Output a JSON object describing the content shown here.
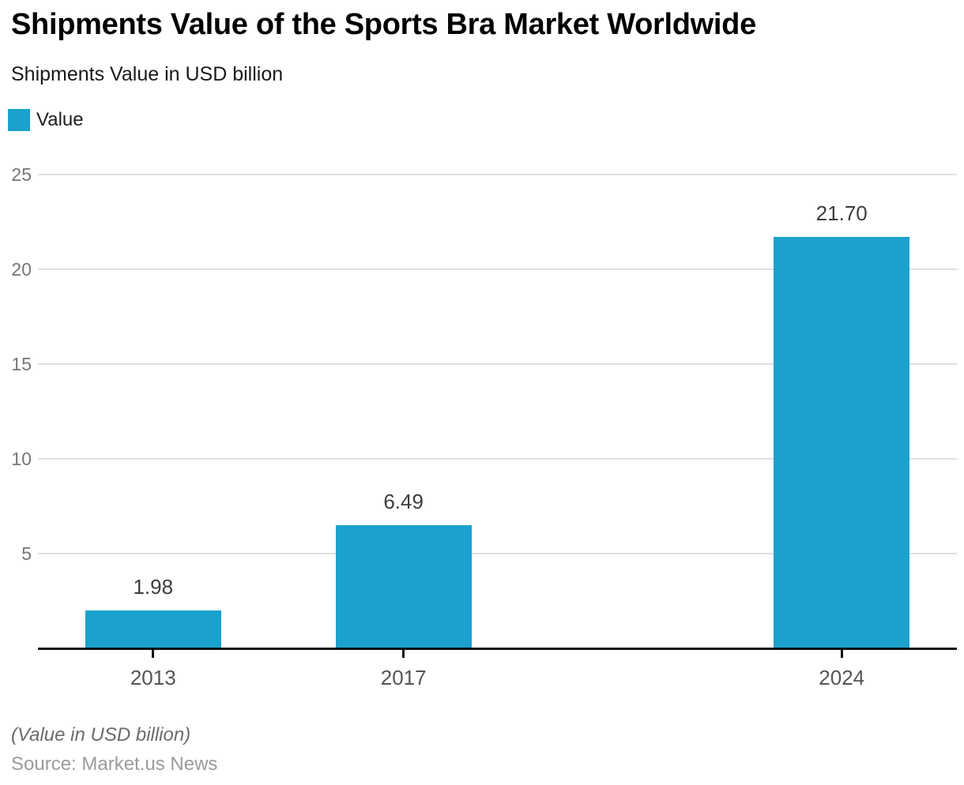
{
  "header": {
    "title": "Shipments Value of the Sports Bra Market Worldwide",
    "subtitle": "Shipments Value in USD billion"
  },
  "legend": {
    "label": "Value"
  },
  "footer": {
    "note": "(Value in USD billion)",
    "source": "Source: Market.us News"
  },
  "colors": {
    "bar": "#1aa1ce",
    "gridline": "#e0e0e0",
    "axis": "#111111",
    "ytick_label": "#757575",
    "xtick_label": "#555555",
    "value_label": "#3d3d3d"
  },
  "chart_data": {
    "type": "bar",
    "title": "Shipments Value of the Sports Bra Market Worldwide",
    "subtitle": "Shipments Value in USD billion",
    "series_name": "Value",
    "categories": [
      "2013",
      "2017",
      "2024"
    ],
    "x_numeric": [
      2013,
      2017,
      2024
    ],
    "values": [
      1.98,
      6.49,
      21.7
    ],
    "value_labels": [
      "1.98",
      "6.49",
      "21.70"
    ],
    "xlabel": "",
    "ylabel": "Shipments Value in USD billion",
    "ylim": [
      0,
      25
    ],
    "yticks": [
      5,
      10,
      15,
      20,
      25
    ],
    "xlim": [
      2011.16,
      2025.84
    ],
    "grid": "horizontal-only",
    "legend_position": "top-left",
    "bar_color": "#1aa1ce",
    "note": "(Value in USD billion)",
    "source": "Source: Market.us News"
  }
}
